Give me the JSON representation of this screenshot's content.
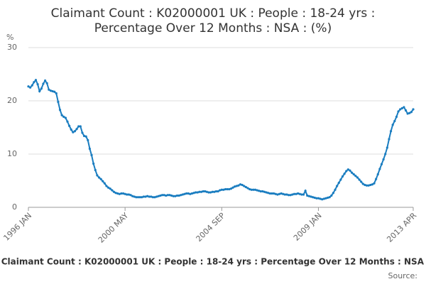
{
  "chart_data": {
    "type": "line",
    "title": [
      "Claimant Count : K02000001 UK : People : 18-24 yrs :",
      "Percentage Over 12 Months : NSA : (%)"
    ],
    "y_unit": "%",
    "footer": "Claimant Count : K02000001 UK : People : 18-24 yrs : Percentage Over 12 Months : NSA",
    "source": "Source:",
    "categories": [
      "1996 JAN",
      null,
      null,
      null,
      null,
      null,
      null,
      null,
      null,
      null,
      null,
      null,
      null,
      null,
      null,
      null,
      null,
      null,
      null,
      null,
      null,
      null,
      null,
      null,
      null,
      null,
      null,
      null,
      null,
      null,
      null,
      null,
      null,
      null,
      null,
      null,
      null,
      null,
      null,
      null,
      null,
      null,
      null,
      null,
      null,
      null,
      null,
      null,
      null,
      null,
      null,
      null,
      "2000 MAY",
      null,
      null,
      null,
      null,
      null,
      null,
      null,
      null,
      null,
      null,
      null,
      null,
      null,
      null,
      null,
      null,
      null,
      null,
      null,
      null,
      null,
      null,
      null,
      null,
      null,
      null,
      null,
      null,
      null,
      null,
      null,
      null,
      null,
      null,
      null,
      null,
      null,
      null,
      null,
      null,
      null,
      null,
      null,
      null,
      null,
      null,
      null,
      null,
      null,
      null,
      null,
      "2004 SEP",
      null,
      null,
      null,
      null,
      null,
      null,
      null,
      null,
      null,
      null,
      null,
      null,
      null,
      null,
      null,
      null,
      null,
      null,
      null,
      null,
      null,
      null,
      null,
      null,
      null,
      null,
      null,
      null,
      null,
      null,
      null,
      null,
      null,
      null,
      null,
      null,
      null,
      null,
      null,
      null,
      null,
      null,
      null,
      null,
      null,
      null,
      null,
      null,
      null,
      null,
      null,
      "2009 JAN",
      null,
      null,
      null,
      null,
      null,
      null,
      null,
      null,
      null,
      null,
      null,
      null,
      null,
      null,
      null,
      null,
      null,
      null,
      null,
      null,
      null,
      null,
      null,
      null,
      null,
      null,
      null,
      null,
      null,
      null,
      null,
      null,
      null,
      null,
      null,
      null,
      null,
      null,
      null,
      null,
      null,
      null,
      null,
      null,
      null,
      null,
      null,
      null,
      null,
      null,
      "2013 APR"
    ],
    "values": [
      22.7,
      22.5,
      22.9,
      23.5,
      23.9,
      23.1,
      21.8,
      22.3,
      23.2,
      23.8,
      23.3,
      22.1,
      21.9,
      21.8,
      21.7,
      21.4,
      19.8,
      18.3,
      17.3,
      17.0,
      16.8,
      16.1,
      15.3,
      14.6,
      14.1,
      14.3,
      14.7,
      15.2,
      15.2,
      14.0,
      13.4,
      13.3,
      12.6,
      11.0,
      9.8,
      8.2,
      7.0,
      6.0,
      5.6,
      5.3,
      4.9,
      4.5,
      4.0,
      3.7,
      3.5,
      3.2,
      2.9,
      2.7,
      2.6,
      2.5,
      2.6,
      2.6,
      2.5,
      2.4,
      2.4,
      2.3,
      2.1,
      2.0,
      1.9,
      1.9,
      1.9,
      1.9,
      2.0,
      2.0,
      2.1,
      2.0,
      2.0,
      1.9,
      1.9,
      2.0,
      2.1,
      2.2,
      2.3,
      2.3,
      2.2,
      2.3,
      2.3,
      2.2,
      2.1,
      2.1,
      2.2,
      2.2,
      2.3,
      2.4,
      2.5,
      2.6,
      2.6,
      2.5,
      2.6,
      2.7,
      2.8,
      2.8,
      2.9,
      2.9,
      3.0,
      3.0,
      2.9,
      2.8,
      2.8,
      2.9,
      2.9,
      3.0,
      3.0,
      3.2,
      3.3,
      3.3,
      3.4,
      3.4,
      3.4,
      3.5,
      3.7,
      3.9,
      4.0,
      4.1,
      4.3,
      4.2,
      4.0,
      3.8,
      3.6,
      3.4,
      3.3,
      3.3,
      3.3,
      3.2,
      3.1,
      3.0,
      3.0,
      2.9,
      2.8,
      2.7,
      2.6,
      2.6,
      2.6,
      2.5,
      2.4,
      2.5,
      2.6,
      2.5,
      2.4,
      2.4,
      2.3,
      2.3,
      2.4,
      2.5,
      2.5,
      2.6,
      2.5,
      2.4,
      2.4,
      3.1,
      2.2,
      2.1,
      2.0,
      1.9,
      1.8,
      1.7,
      1.7,
      1.6,
      1.5,
      1.6,
      1.7,
      1.8,
      1.9,
      2.2,
      2.7,
      3.3,
      4.0,
      4.6,
      5.2,
      5.8,
      6.3,
      6.8,
      7.1,
      6.9,
      6.5,
      6.2,
      5.9,
      5.6,
      5.2,
      4.8,
      4.4,
      4.2,
      4.1,
      4.1,
      4.2,
      4.3,
      4.5,
      5.3,
      6.2,
      7.2,
      8.1,
      9.0,
      10.0,
      11.2,
      12.8,
      14.3,
      15.5,
      16.2,
      17.0,
      18.0,
      18.4,
      18.6,
      18.8,
      18.2,
      17.6,
      17.7,
      17.9,
      18.4
    ],
    "color": "#1a7dc0",
    "ylim": [
      0,
      30
    ],
    "yticks": [
      0,
      10,
      20,
      30
    ],
    "grid": true
  }
}
